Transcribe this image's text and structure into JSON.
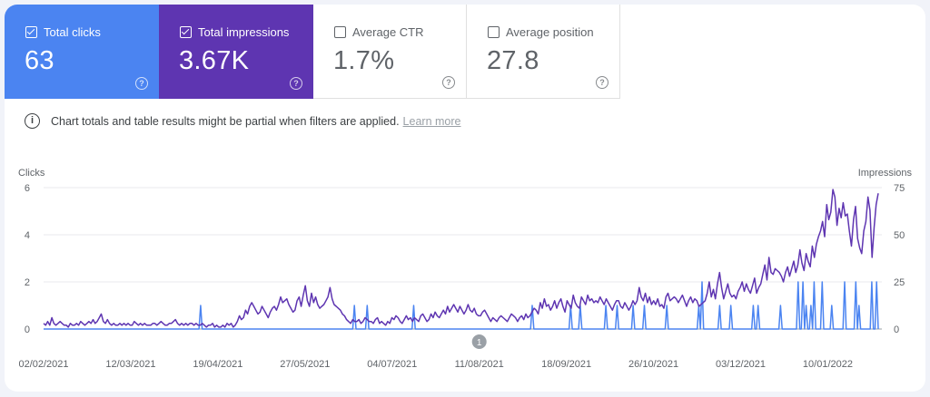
{
  "metrics": {
    "clicks": {
      "label": "Total clicks",
      "value": "63",
      "checked": true
    },
    "impressions": {
      "label": "Total impressions",
      "value": "3.67K",
      "checked": true
    },
    "ctr": {
      "label": "Average CTR",
      "value": "1.7%",
      "checked": false
    },
    "position": {
      "label": "Average position",
      "value": "27.8",
      "checked": false
    },
    "help_glyph": "?"
  },
  "notice": {
    "icon": "info-icon",
    "icon_glyph": "i",
    "text": "Chart totals and table results might be partial when filters are applied.",
    "link": "Learn more"
  },
  "colors": {
    "clicks": "#4b84f1",
    "impressions": "#5e35b1",
    "grid": "#e8eaed"
  },
  "annotation_marker": "1",
  "chart_data": {
    "type": "line",
    "left_axis_title": "Clicks",
    "right_axis_title": "Impressions",
    "left_ticks": [
      "6",
      "4",
      "2",
      "0"
    ],
    "right_ticks": [
      "75",
      "50",
      "25",
      "0"
    ],
    "ylim_left": [
      0,
      6
    ],
    "ylim_right": [
      0,
      75
    ],
    "x_start": "02/02/2021",
    "x_end": "01/02/2022",
    "x_ticks": [
      "02/02/2021",
      "12/03/2021",
      "19/04/2021",
      "27/05/2021",
      "04/07/2021",
      "11/08/2021",
      "18/09/2021",
      "26/10/2021",
      "03/12/2021",
      "10/01/2022"
    ],
    "annotation_date": "11/08/2021",
    "series": [
      {
        "name": "Total clicks",
        "axis": "left",
        "values": [
          0,
          0,
          0,
          0,
          0,
          0,
          0,
          0,
          0,
          0,
          0,
          0,
          0,
          0,
          0,
          0,
          0,
          0,
          0,
          0,
          0,
          0,
          0,
          0,
          0,
          0,
          0,
          0,
          0,
          0,
          0,
          0,
          0,
          0,
          0,
          0,
          0,
          0,
          0,
          0,
          0,
          0,
          0,
          0,
          0,
          0,
          0,
          0,
          0,
          0,
          0,
          0,
          0,
          0,
          0,
          0,
          0,
          0,
          0,
          0,
          0,
          0,
          0,
          0,
          0,
          0,
          0,
          0,
          0,
          0,
          0,
          0,
          0,
          0,
          0,
          0,
          0,
          0,
          0,
          0,
          0,
          0,
          0,
          0,
          0,
          0,
          0,
          0,
          0,
          0,
          0,
          0,
          0,
          0,
          0,
          0,
          0,
          0,
          1,
          0,
          0,
          0,
          0,
          0,
          0,
          0,
          0,
          0,
          0,
          0,
          0,
          0,
          0,
          0,
          0,
          0,
          0,
          0,
          0,
          0,
          0,
          0,
          0,
          0,
          0,
          0,
          0,
          0,
          0,
          0,
          0,
          0,
          0,
          0,
          0,
          0,
          0,
          0,
          0,
          0,
          0,
          0,
          0,
          0,
          0,
          0,
          0,
          0,
          0,
          0,
          0,
          0,
          0,
          0,
          0,
          0,
          0,
          0,
          0,
          0,
          0,
          0,
          0,
          0,
          0,
          0,
          0,
          0,
          0,
          0,
          0,
          0,
          0,
          0,
          0,
          0,
          0,
          0,
          0,
          0,
          0,
          0,
          0,
          0,
          0,
          0,
          0,
          0,
          0,
          0,
          0,
          0,
          0,
          0,
          1,
          0,
          0,
          0,
          0,
          0,
          0,
          0,
          1,
          0,
          0,
          0,
          0,
          0,
          0,
          0,
          0,
          0,
          0,
          0,
          0,
          0,
          0,
          0,
          0,
          0,
          0,
          0,
          0,
          0,
          0,
          0,
          0,
          0,
          0,
          0,
          0,
          1,
          0,
          0,
          0,
          0,
          0,
          0,
          0,
          0,
          0,
          0,
          0,
          0,
          0,
          0,
          0,
          0,
          0,
          0,
          0,
          0,
          0,
          0,
          0,
          0,
          0,
          0,
          0,
          0,
          0,
          0,
          0,
          0,
          0,
          0,
          0,
          0,
          0,
          0,
          0,
          0,
          0,
          0,
          0,
          0,
          0,
          0,
          0,
          0,
          0,
          0,
          0,
          0,
          0,
          0,
          0,
          0,
          0,
          0,
          0,
          0,
          0,
          0,
          0,
          0,
          0,
          0,
          0,
          0,
          0,
          0,
          0,
          0,
          0,
          1,
          0,
          0,
          0,
          0,
          0,
          0,
          0,
          0,
          0,
          0,
          0,
          0,
          0,
          0,
          0,
          0,
          0,
          0,
          0,
          0,
          0,
          0,
          0,
          1,
          0,
          0,
          0,
          0,
          0,
          1,
          0,
          0,
          0,
          0,
          0,
          0,
          0,
          0,
          0,
          0,
          0,
          0,
          0,
          0,
          0,
          1,
          0,
          0,
          0,
          0,
          0,
          0,
          1,
          0,
          0,
          0,
          0,
          0,
          0,
          0,
          0,
          0,
          1,
          0,
          0,
          0,
          0,
          0,
          0,
          1,
          0,
          0,
          0,
          0,
          0,
          0,
          0,
          0,
          0,
          0,
          0,
          0,
          0,
          1,
          0,
          0,
          0,
          0,
          0,
          0,
          0,
          0,
          0,
          0,
          0,
          0,
          0,
          0,
          0,
          0,
          0,
          0,
          0,
          1,
          0,
          2,
          0,
          0,
          0,
          0,
          0,
          0,
          0,
          0,
          0,
          0,
          1,
          0,
          0,
          0,
          0,
          0,
          0,
          1,
          0,
          0,
          0,
          0,
          0,
          0,
          0,
          0,
          0,
          0,
          0,
          0,
          0,
          1,
          0,
          0,
          1,
          0,
          0,
          0,
          0,
          0,
          0,
          0,
          0,
          0,
          0,
          0,
          0,
          0,
          1,
          0,
          0,
          0,
          0,
          0,
          0,
          0,
          0,
          0,
          0,
          2,
          0,
          0,
          2,
          0,
          1,
          0,
          0,
          1,
          0,
          2,
          0,
          0,
          0,
          0,
          2,
          0,
          0,
          0,
          0,
          0,
          1,
          0,
          0,
          0,
          0,
          0,
          0,
          0,
          2,
          0,
          0,
          0,
          0,
          0,
          0,
          2,
          0,
          1,
          0,
          0,
          0,
          0,
          0,
          0,
          0,
          2,
          0,
          0,
          2,
          0
        ]
      },
      {
        "name": "Total impressions",
        "axis": "right",
        "values": [
          3,
          2,
          4,
          2,
          6,
          3,
          2,
          3,
          4,
          3,
          2,
          2,
          1,
          3,
          2,
          2,
          3,
          2,
          4,
          3,
          2,
          3,
          4,
          3,
          5,
          3,
          4,
          6,
          8,
          4,
          3,
          5,
          3,
          2,
          3,
          2,
          2,
          3,
          2,
          3,
          2,
          3,
          2,
          2,
          4,
          3,
          2,
          3,
          2,
          3,
          2,
          2,
          2,
          3,
          3,
          2,
          3,
          4,
          3,
          2,
          2,
          3,
          3,
          4,
          5,
          3,
          2,
          3,
          2,
          3,
          2,
          3,
          3,
          2,
          3,
          2,
          2,
          3,
          2,
          1,
          2,
          2,
          3,
          1,
          2,
          1,
          1,
          2,
          1,
          3,
          2,
          3,
          1,
          2,
          4,
          7,
          5,
          6,
          10,
          8,
          12,
          14,
          12,
          10,
          8,
          9,
          12,
          10,
          8,
          6,
          9,
          11,
          12,
          10,
          13,
          17,
          14,
          15,
          16,
          13,
          11,
          9,
          10,
          15,
          17,
          12,
          18,
          23,
          15,
          12,
          19,
          14,
          17,
          13,
          11,
          12,
          13,
          15,
          17,
          22,
          16,
          13,
          12,
          11,
          10,
          8,
          7,
          5,
          4,
          3,
          5,
          4,
          4,
          5,
          3,
          4,
          6,
          5,
          4,
          4,
          3,
          5,
          6,
          3,
          4,
          3,
          2,
          4,
          3,
          6,
          5,
          7,
          6,
          4,
          3,
          5,
          7,
          5,
          6,
          4,
          6,
          5,
          4,
          7,
          8,
          6,
          4,
          5,
          8,
          6,
          9,
          7,
          6,
          8,
          10,
          8,
          12,
          9,
          11,
          13,
          11,
          9,
          12,
          10,
          8,
          10,
          13,
          10,
          9,
          11,
          8,
          7,
          7,
          9,
          10,
          8,
          6,
          4,
          6,
          5,
          4,
          6,
          7,
          6,
          5,
          4,
          6,
          8,
          7,
          6,
          4,
          6,
          7,
          5,
          8,
          6,
          7,
          9,
          11,
          10,
          8,
          14,
          11,
          16,
          12,
          13,
          10,
          12,
          15,
          11,
          14,
          16,
          12,
          9,
          15,
          13,
          11,
          18,
          14,
          12,
          11,
          17,
          15,
          13,
          18,
          15,
          16,
          14,
          15,
          14,
          17,
          15,
          13,
          16,
          14,
          12,
          10,
          13,
          15,
          15,
          12,
          11,
          14,
          12,
          10,
          12,
          15,
          13,
          15,
          22,
          17,
          15,
          19,
          14,
          17,
          13,
          15,
          13,
          16,
          12,
          13,
          11,
          17,
          19,
          15,
          16,
          17,
          16,
          14,
          16,
          18,
          15,
          12,
          15,
          17,
          14,
          16,
          15,
          12,
          13,
          14,
          15,
          19,
          25,
          17,
          21,
          16,
          24,
          30,
          22,
          16,
          20,
          24,
          19,
          17,
          18,
          16,
          20,
          22,
          25,
          20,
          24,
          21,
          19,
          23,
          27,
          19,
          22,
          24,
          29,
          34,
          26,
          38,
          30,
          29,
          32,
          31,
          30,
          28,
          25,
          30,
          33,
          28,
          32,
          36,
          30,
          34,
          42,
          35,
          31,
          40,
          36,
          33,
          44,
          38,
          45,
          49,
          52,
          57,
          49,
          66,
          58,
          62,
          74,
          70,
          55,
          64,
          59,
          67,
          60,
          61,
          52,
          44,
          58,
          65,
          48,
          43,
          40,
          52,
          57,
          70,
          63,
          38,
          54,
          66,
          72
        ]
      }
    ]
  }
}
